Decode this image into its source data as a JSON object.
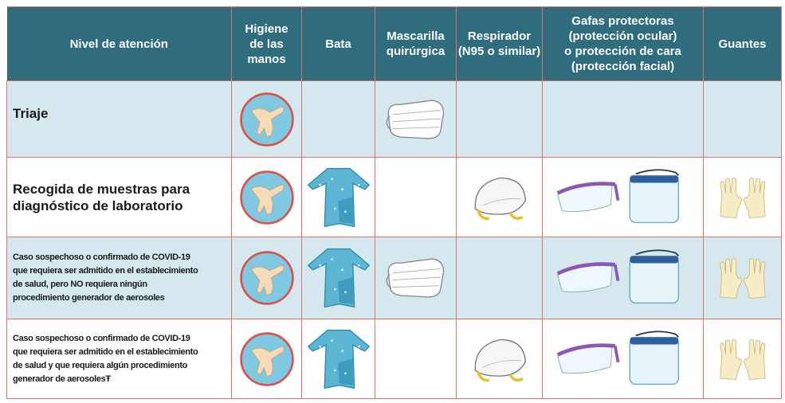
{
  "header": {
    "columns": [
      [
        "Nivel de atención"
      ],
      [
        "Higiene",
        "de las",
        "manos"
      ],
      [
        "Bata"
      ],
      [
        "Mascarilla",
        "quirúrgica"
      ],
      [
        "Respirador",
        "(N95 o similar)"
      ],
      [
        "Gafas protectoras",
        "(protección ocular)",
        "o protección de cara",
        "(protección facial)"
      ],
      [
        "Guantes"
      ]
    ]
  },
  "rows": [
    [
      "Triaje"
    ],
    [
      "Recogida de muestras para",
      "diagnóstico de laboratorio"
    ],
    [
      "Caso sospechoso o confirmado de COVID-19",
      "que requiera ser admitido en el establecimiento",
      "de salud, pero NO requiera ningún",
      "procedimiento generador de aerosoles"
    ],
    [
      "Caso sospechoso o confirmado de COVID-19",
      "que requiera ser admitido en el establecimiento",
      "de salud y que requiera algún procedimiento",
      "generador de aerosolesŦ"
    ]
  ]
}
